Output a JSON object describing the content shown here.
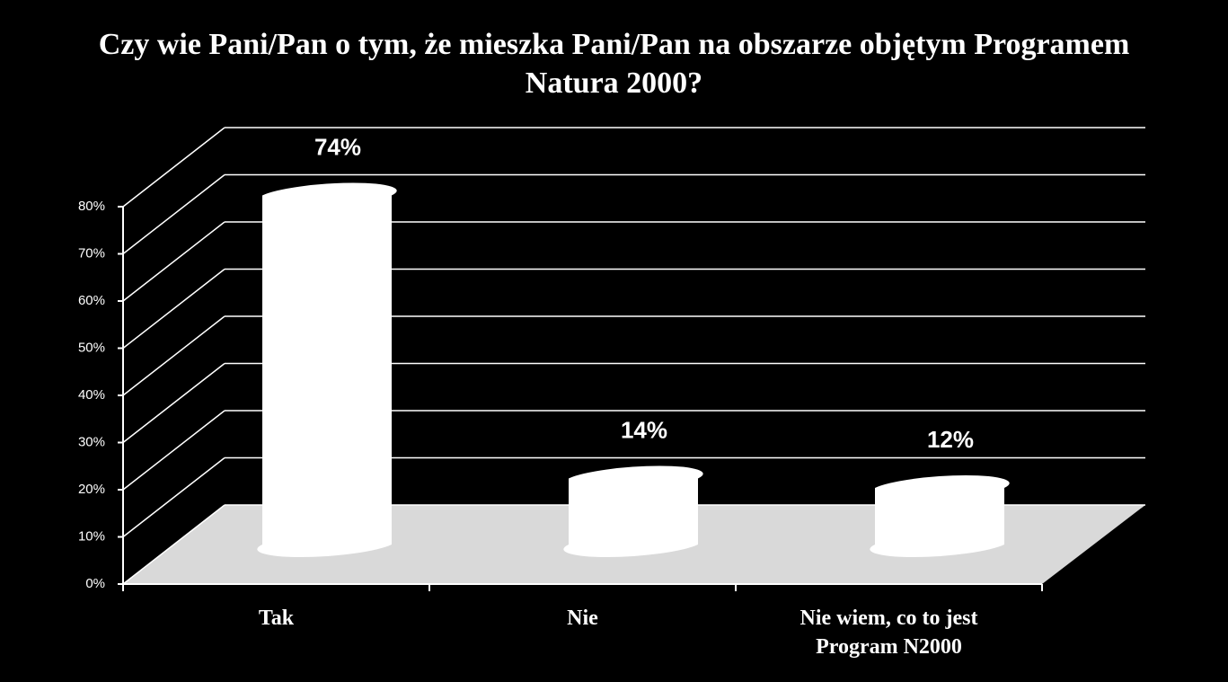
{
  "chart_data": {
    "type": "bar",
    "title": "Czy wie Pani/Pan o tym, że mieszka Pani/Pan na obszarze objętym Programem Natura 2000?",
    "categories": [
      "Tak",
      "Nie",
      "Nie wiem, co to jest Program N2000"
    ],
    "values": [
      74,
      14,
      12
    ],
    "value_labels": [
      "74%",
      "14%",
      "12%"
    ],
    "color": "#ffffff",
    "ylim": [
      0,
      80
    ],
    "yticks": [
      {
        "value": 0,
        "label": "0%"
      },
      {
        "value": 10,
        "label": "10%"
      },
      {
        "value": 20,
        "label": "20%"
      },
      {
        "value": 30,
        "label": "30%"
      },
      {
        "value": 40,
        "label": "40%"
      },
      {
        "value": 50,
        "label": "50%"
      },
      {
        "value": 60,
        "label": "60%"
      },
      {
        "value": 70,
        "label": "70%"
      },
      {
        "value": 80,
        "label": "80%"
      }
    ],
    "grid": true
  }
}
